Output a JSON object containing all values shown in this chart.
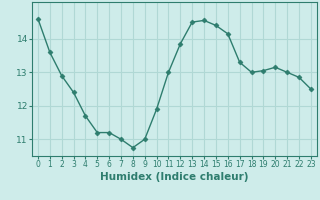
{
  "x": [
    0,
    1,
    2,
    3,
    4,
    5,
    6,
    7,
    8,
    9,
    10,
    11,
    12,
    13,
    14,
    15,
    16,
    17,
    18,
    19,
    20,
    21,
    22,
    23
  ],
  "y": [
    14.6,
    13.6,
    12.9,
    12.4,
    11.7,
    11.2,
    11.2,
    11.0,
    10.75,
    11.0,
    11.9,
    13.0,
    13.85,
    14.5,
    14.55,
    14.4,
    14.15,
    13.3,
    13.0,
    13.05,
    13.15,
    13.0,
    12.85,
    12.5
  ],
  "line_color": "#2e7d6e",
  "marker": "D",
  "marker_size": 2.5,
  "bg_color": "#ceecea",
  "grid_color": "#b0d8d5",
  "xlabel": "Humidex (Indice chaleur)",
  "ylim": [
    10.5,
    15.1
  ],
  "xlim": [
    -0.5,
    23.5
  ],
  "yticks": [
    11,
    12,
    13,
    14
  ],
  "xticks": [
    0,
    1,
    2,
    3,
    4,
    5,
    6,
    7,
    8,
    9,
    10,
    11,
    12,
    13,
    14,
    15,
    16,
    17,
    18,
    19,
    20,
    21,
    22,
    23
  ],
  "xtick_fontsize": 5.5,
  "ytick_fontsize": 6.5,
  "xlabel_fontsize": 7.5,
  "spine_color": "#2e7d6e",
  "tick_color": "#2e7d6e",
  "label_color": "#2e7d6e"
}
